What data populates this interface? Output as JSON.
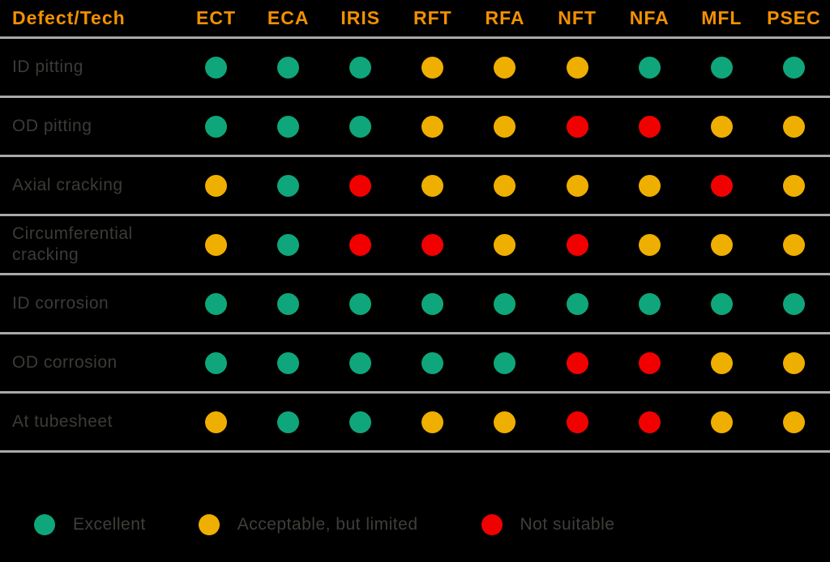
{
  "chart_data": {
    "type": "table",
    "header": {
      "defect_col": "Defect/Tech",
      "tech_cols": [
        "ECT",
        "ECA",
        "IRIS",
        "RFT",
        "RFA",
        "NFT",
        "NFA",
        "MFL",
        "PSEC"
      ]
    },
    "rows": [
      {
        "label": "ID pitting",
        "ratings": [
          "excellent",
          "excellent",
          "excellent",
          "acceptable",
          "acceptable",
          "acceptable",
          "excellent",
          "excellent",
          "excellent"
        ]
      },
      {
        "label": "OD pitting",
        "ratings": [
          "excellent",
          "excellent",
          "excellent",
          "acceptable",
          "acceptable",
          "not-suitable",
          "not-suitable",
          "acceptable",
          "acceptable"
        ]
      },
      {
        "label": "Axial cracking",
        "ratings": [
          "acceptable",
          "excellent",
          "not-suitable",
          "acceptable",
          "acceptable",
          "acceptable",
          "acceptable",
          "not-suitable",
          "acceptable"
        ]
      },
      {
        "label": "Circumferential cracking",
        "ratings": [
          "acceptable",
          "excellent",
          "not-suitable",
          "not-suitable",
          "acceptable",
          "not-suitable",
          "acceptable",
          "acceptable",
          "acceptable"
        ]
      },
      {
        "label": "ID corrosion",
        "ratings": [
          "excellent",
          "excellent",
          "excellent",
          "excellent",
          "excellent",
          "excellent",
          "excellent",
          "excellent",
          "excellent"
        ]
      },
      {
        "label": "OD corrosion",
        "ratings": [
          "excellent",
          "excellent",
          "excellent",
          "excellent",
          "excellent",
          "not-suitable",
          "not-suitable",
          "acceptable",
          "acceptable"
        ]
      },
      {
        "label": "At tubesheet",
        "ratings": [
          "acceptable",
          "excellent",
          "excellent",
          "acceptable",
          "acceptable",
          "not-suitable",
          "not-suitable",
          "acceptable",
          "acceptable"
        ]
      }
    ],
    "legend": [
      {
        "rating": "excellent",
        "label": "Excellent"
      },
      {
        "rating": "acceptable",
        "label": "Acceptable, but limited"
      },
      {
        "rating": "not-suitable",
        "label": "Not suitable"
      }
    ],
    "colors": {
      "excellent": "#0FA67B",
      "acceptable": "#EFAF00",
      "not-suitable": "#F20000",
      "header_text": "#F29100",
      "row_label_text": "#3D3B37",
      "legend_text": "#403E3A",
      "separator": "#A9A9A9",
      "background": "#000000"
    }
  }
}
